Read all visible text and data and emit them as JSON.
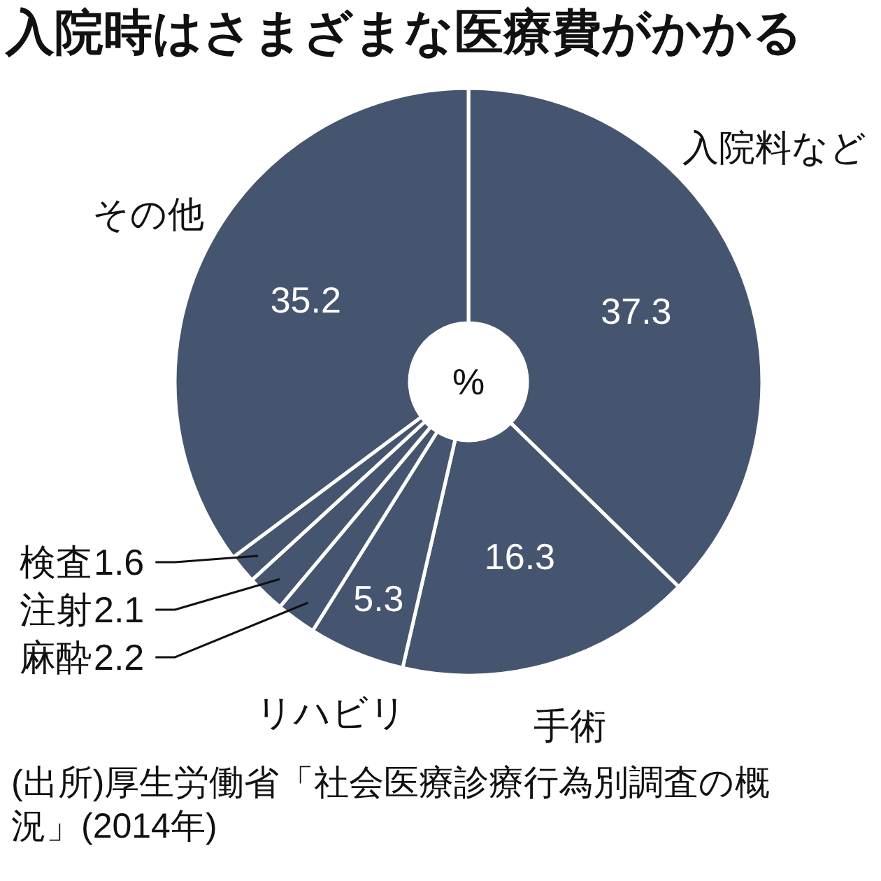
{
  "chart_data": {
    "type": "donut",
    "title": "入院時はさまざまな医療費がかかる",
    "categories": [
      "入院料など",
      "手術",
      "リハビリ",
      "麻酔",
      "注射",
      "検査",
      "その他"
    ],
    "values": [
      37.3,
      16.3,
      5.3,
      2.2,
      2.1,
      1.6,
      35.2
    ],
    "colors": [
      "#46556f",
      "#46556f",
      "#46556f",
      "#46556f",
      "#46556f",
      "#46556f",
      "#46556f"
    ],
    "data_labels": true,
    "annotations": [
      "%",
      "(出所)厚生労働省「社会医療診療行為別調査の概況」(2014年)"
    ]
  }
}
